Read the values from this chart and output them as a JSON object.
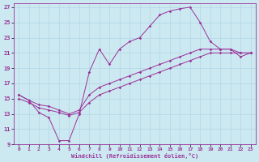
{
  "xlabel": "Windchill (Refroidissement éolien,°C)",
  "line_color": "#993399",
  "bg_color": "#cce8f0",
  "grid_color": "#b0d8e8",
  "xlim": [
    -0.5,
    23.5
  ],
  "ylim": [
    9,
    27.5
  ],
  "xticks": [
    0,
    1,
    2,
    3,
    4,
    5,
    6,
    7,
    8,
    9,
    10,
    11,
    12,
    13,
    14,
    15,
    16,
    17,
    18,
    19,
    20,
    21,
    22,
    23
  ],
  "yticks": [
    9,
    11,
    13,
    15,
    17,
    19,
    21,
    23,
    25,
    27
  ],
  "curves": [
    {
      "x": [
        0,
        1,
        2,
        3,
        4,
        5,
        6,
        7,
        8,
        9,
        10,
        11,
        12,
        13,
        14,
        15,
        16,
        17,
        18,
        19,
        20,
        21,
        22,
        23
      ],
      "y": [
        15.5,
        14.8,
        13.2,
        12.5,
        9.5,
        9.5,
        13.0,
        18.5,
        21.5,
        19.5,
        21.5,
        22.5,
        23.0,
        24.5,
        26.0,
        26.5,
        26.8,
        27.0,
        25.0,
        22.5,
        21.5,
        21.5,
        20.5,
        21.0
      ]
    },
    {
      "x": [
        0,
        1,
        2,
        3,
        4,
        5,
        6,
        7,
        8,
        9,
        10,
        11,
        12,
        13,
        14,
        15,
        16,
        17,
        18,
        19,
        20,
        21,
        22,
        23
      ],
      "y": [
        15.5,
        14.8,
        14.2,
        14.0,
        13.5,
        13.0,
        13.5,
        15.5,
        16.5,
        17.0,
        17.5,
        18.0,
        18.5,
        19.0,
        19.5,
        20.0,
        20.5,
        21.0,
        21.5,
        21.5,
        21.5,
        21.5,
        21.0,
        21.0
      ]
    },
    {
      "x": [
        0,
        1,
        2,
        3,
        4,
        5,
        6,
        7,
        8,
        9,
        10,
        11,
        12,
        13,
        14,
        15,
        16,
        17,
        18,
        19,
        20,
        21,
        22,
        23
      ],
      "y": [
        15.0,
        14.5,
        13.8,
        13.5,
        13.2,
        12.8,
        13.2,
        14.5,
        15.5,
        16.0,
        16.5,
        17.0,
        17.5,
        18.0,
        18.5,
        19.0,
        19.5,
        20.0,
        20.5,
        21.0,
        21.0,
        21.0,
        21.0,
        21.0
      ]
    }
  ]
}
